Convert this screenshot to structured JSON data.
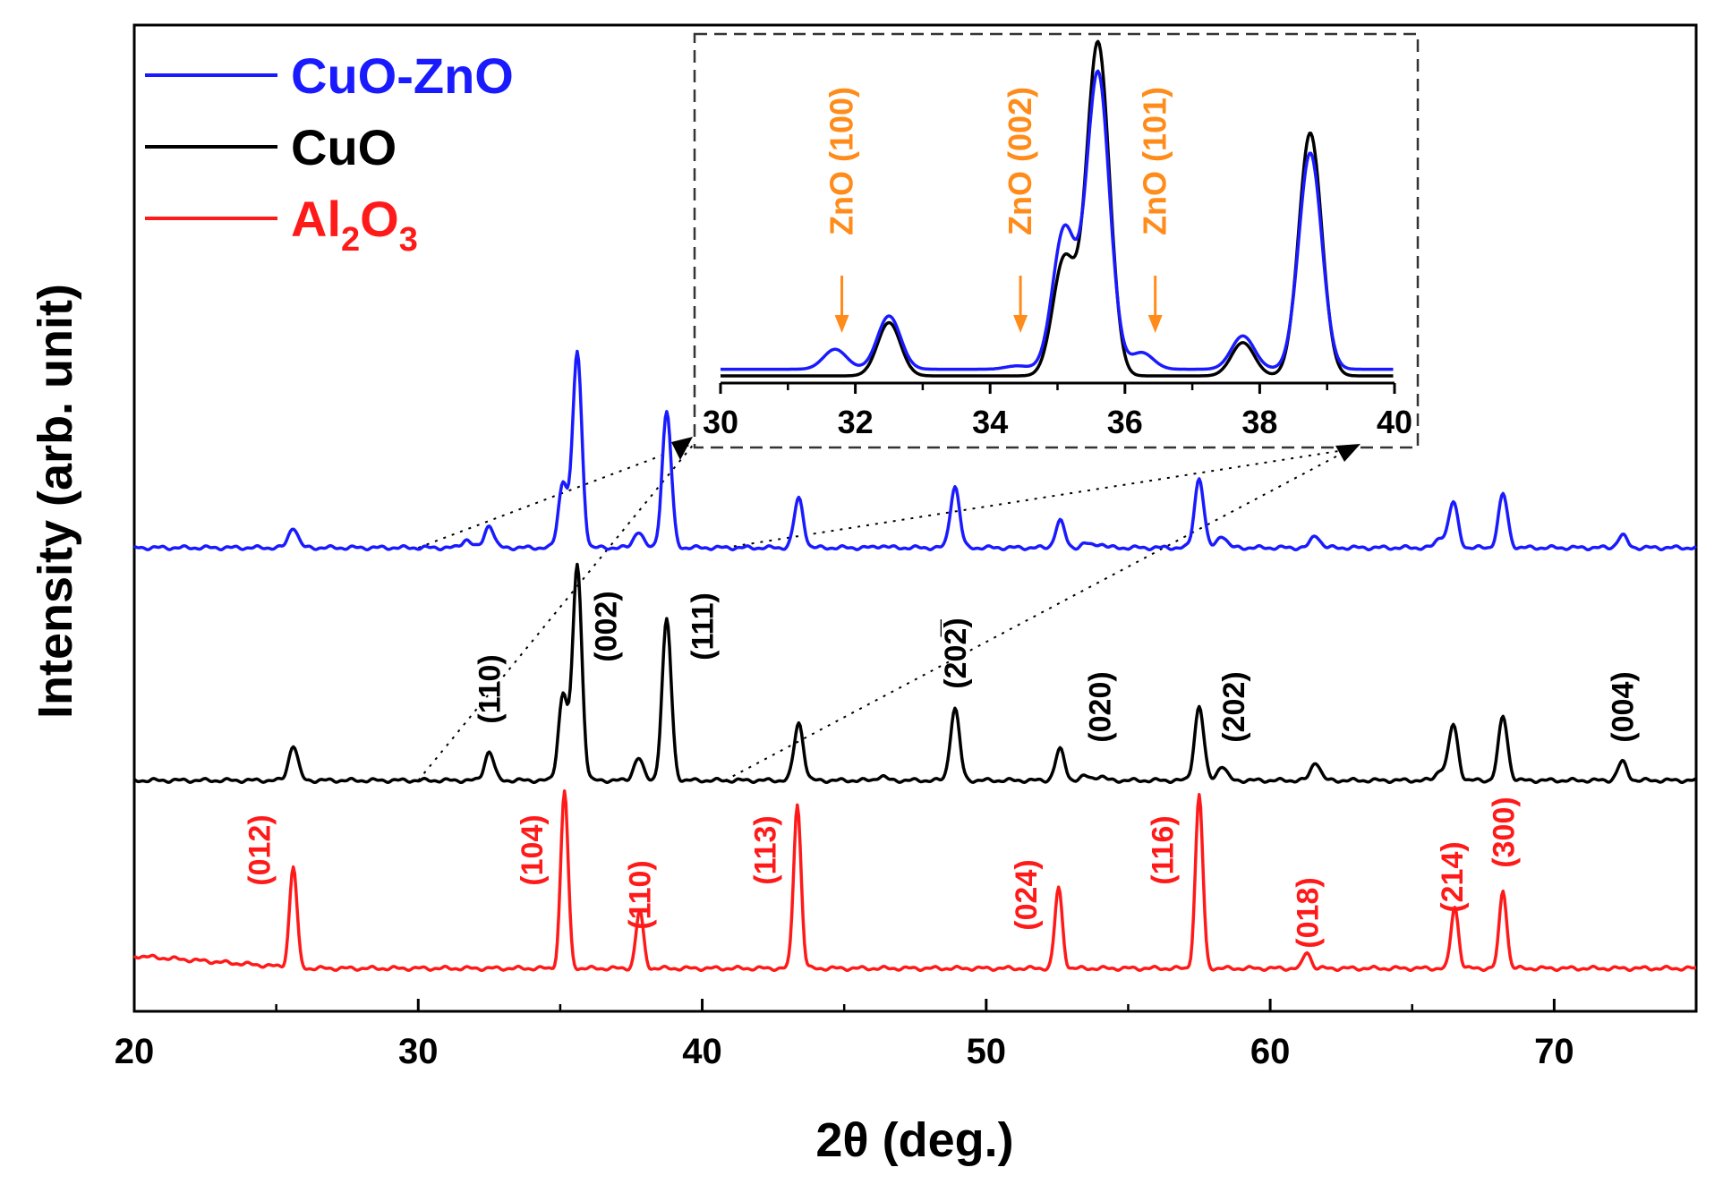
{
  "chart_data": {
    "type": "line",
    "title": "",
    "xlabel": "2θ (deg.)",
    "ylabel": "Intensity (arb. unit)",
    "xlim": [
      20,
      75
    ],
    "xticks": [
      "20",
      "30",
      "40",
      "50",
      "60",
      "70"
    ],
    "legend": {
      "placement": "top-left",
      "entries": [
        {
          "label": "CuO-ZnO",
          "color": "#1a1aff"
        },
        {
          "label": "CuO",
          "color": "#000000"
        },
        {
          "label": "Al₂O₃",
          "label_main": "Al",
          "sub1": "2",
          "mid": "O",
          "sub2": "3",
          "color": "#ff1a1a"
        }
      ]
    },
    "series": [
      {
        "name": "CuO-ZnO",
        "color": "#1a1aff",
        "peaks": [
          [
            25.6,
            0.1
          ],
          [
            31.7,
            0.04
          ],
          [
            32.5,
            0.11
          ],
          [
            35.1,
            0.32
          ],
          [
            35.6,
            0.95
          ],
          [
            37.75,
            0.08
          ],
          [
            38.75,
            0.66
          ],
          [
            43.4,
            0.24
          ],
          [
            46.3,
            0.01
          ],
          [
            48.9,
            0.3
          ],
          [
            52.6,
            0.13
          ],
          [
            53.5,
            0.02
          ],
          [
            54.0,
            0.02
          ],
          [
            57.5,
            0.34
          ],
          [
            58.3,
            0.06
          ],
          [
            61.6,
            0.06
          ],
          [
            66.0,
            0.05
          ],
          [
            66.45,
            0.22
          ],
          [
            68.2,
            0.26
          ],
          [
            72.4,
            0.06
          ]
        ]
      },
      {
        "name": "CuO",
        "color": "#000000",
        "peaks": [
          [
            25.6,
            0.17
          ],
          [
            32.5,
            0.14
          ],
          [
            35.1,
            0.42
          ],
          [
            35.6,
            1.05
          ],
          [
            37.75,
            0.11
          ],
          [
            38.75,
            0.78
          ],
          [
            43.4,
            0.28
          ],
          [
            46.3,
            0.02
          ],
          [
            48.9,
            0.35
          ],
          [
            52.6,
            0.15
          ],
          [
            53.5,
            0.02
          ],
          [
            54.0,
            0.02
          ],
          [
            57.5,
            0.36
          ],
          [
            58.3,
            0.07
          ],
          [
            61.6,
            0.09
          ],
          [
            66.0,
            0.05
          ],
          [
            66.45,
            0.27
          ],
          [
            68.2,
            0.31
          ],
          [
            72.4,
            0.09
          ]
        ]
      },
      {
        "name": "Al₂O₃",
        "color": "#ff1a1a",
        "peaks": [
          [
            25.6,
            0.49
          ],
          [
            35.15,
            0.86
          ],
          [
            37.8,
            0.28
          ],
          [
            43.35,
            0.8
          ],
          [
            52.55,
            0.39
          ],
          [
            57.5,
            0.84
          ],
          [
            61.3,
            0.08
          ],
          [
            66.5,
            0.3
          ],
          [
            68.2,
            0.38
          ]
        ]
      }
    ],
    "peak_labels": {
      "CuO": [
        {
          "text": "(110)",
          "x": 32.5
        },
        {
          "text": "(002)",
          "x": 36.6
        },
        {
          "text": "(111)",
          "x": 40.0
        },
        {
          "text": "(202̅)",
          "x": 48.9
        },
        {
          "text": "(020)",
          "x": 54.0
        },
        {
          "text": "(202)",
          "x": 58.7
        },
        {
          "text": "(004)",
          "x": 72.4
        }
      ],
      "Al₂O₃": [
        {
          "text": "(012)",
          "x": 24.4
        },
        {
          "text": "(104)",
          "x": 34.0
        },
        {
          "text": "(110)",
          "x": 37.8
        },
        {
          "text": "(113)",
          "x": 42.2
        },
        {
          "text": "(024)",
          "x": 51.4
        },
        {
          "text": "(116)",
          "x": 56.2
        },
        {
          "text": "(018)",
          "x": 61.3
        },
        {
          "text": "(214)",
          "x": 66.4
        },
        {
          "text": "(300)",
          "x": 68.2
        }
      ]
    },
    "inset": {
      "xlim": [
        30,
        40
      ],
      "xticks": [
        "30",
        "32",
        "34",
        "36",
        "38",
        "40"
      ],
      "series": [
        {
          "name": "CuO",
          "color": "#000000",
          "peaks": [
            [
              32.5,
              0.16
            ],
            [
              35.1,
              0.35
            ],
            [
              35.6,
              1.0
            ],
            [
              37.75,
              0.1
            ],
            [
              38.75,
              0.73
            ]
          ]
        },
        {
          "name": "CuO-ZnO",
          "color": "#1a1aff",
          "peaks": [
            [
              31.7,
              0.06
            ],
            [
              32.5,
              0.16
            ],
            [
              34.4,
              0.01
            ],
            [
              35.1,
              0.42
            ],
            [
              35.6,
              0.89
            ],
            [
              36.25,
              0.05
            ],
            [
              37.75,
              0.1
            ],
            [
              38.75,
              0.65
            ]
          ],
          "offset": 0.02
        }
      ],
      "annotations": [
        {
          "text": "ZnO (100)",
          "x": 31.8
        },
        {
          "text": "ZnO (002)",
          "x": 34.45
        },
        {
          "text": "ZnO (101)",
          "x": 36.45
        }
      ]
    }
  }
}
